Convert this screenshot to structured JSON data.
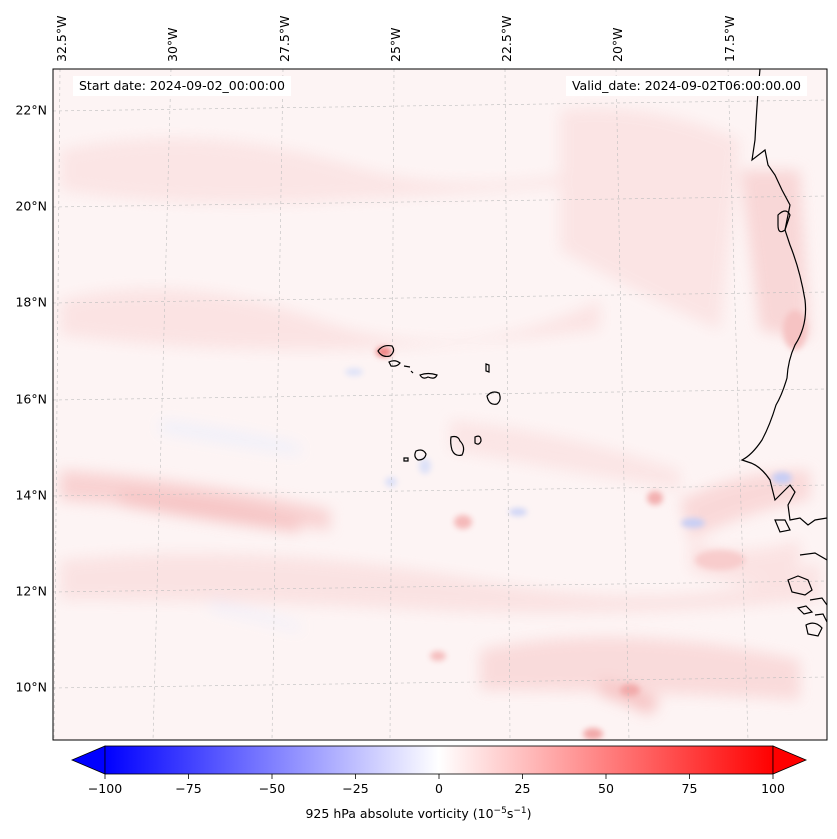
{
  "map": {
    "start_date": "Start date: 2024-09-02_00:00:00",
    "valid_date": "Valid_date: 2024-09-02T06:00:00.00",
    "longitude_labels": [
      "32.5°W",
      "30°W",
      "27.5°W",
      "25°W",
      "22.5°W",
      "20°W",
      "17.5°W"
    ],
    "latitude_labels": [
      "22°N",
      "20°N",
      "18°N",
      "16°N",
      "14°N",
      "12°N",
      "10°N"
    ],
    "extent": {
      "lon_min": -32.6,
      "lon_max": -15.1,
      "lat_min": 8.9,
      "lat_max": 22.8
    },
    "field": "925 hPa absolute vorticity",
    "colors": {
      "negative": "#0000ff",
      "zero": "#ffffff",
      "positive": "#ff0000",
      "coastline": "#000000"
    }
  },
  "colorbar": {
    "label": "925 hPa absolute vorticity (10⁻⁵s⁻¹)",
    "label_base": "925 hPa absolute vorticity (10",
    "label_exp1": "−5",
    "label_mid": "s",
    "label_exp2": "−1",
    "label_end": ")",
    "ticks": [
      "−100",
      "−75",
      "−50",
      "−25",
      "0",
      "25",
      "50",
      "75",
      "100"
    ],
    "range": [
      -100,
      100
    ],
    "extend": "both"
  }
}
